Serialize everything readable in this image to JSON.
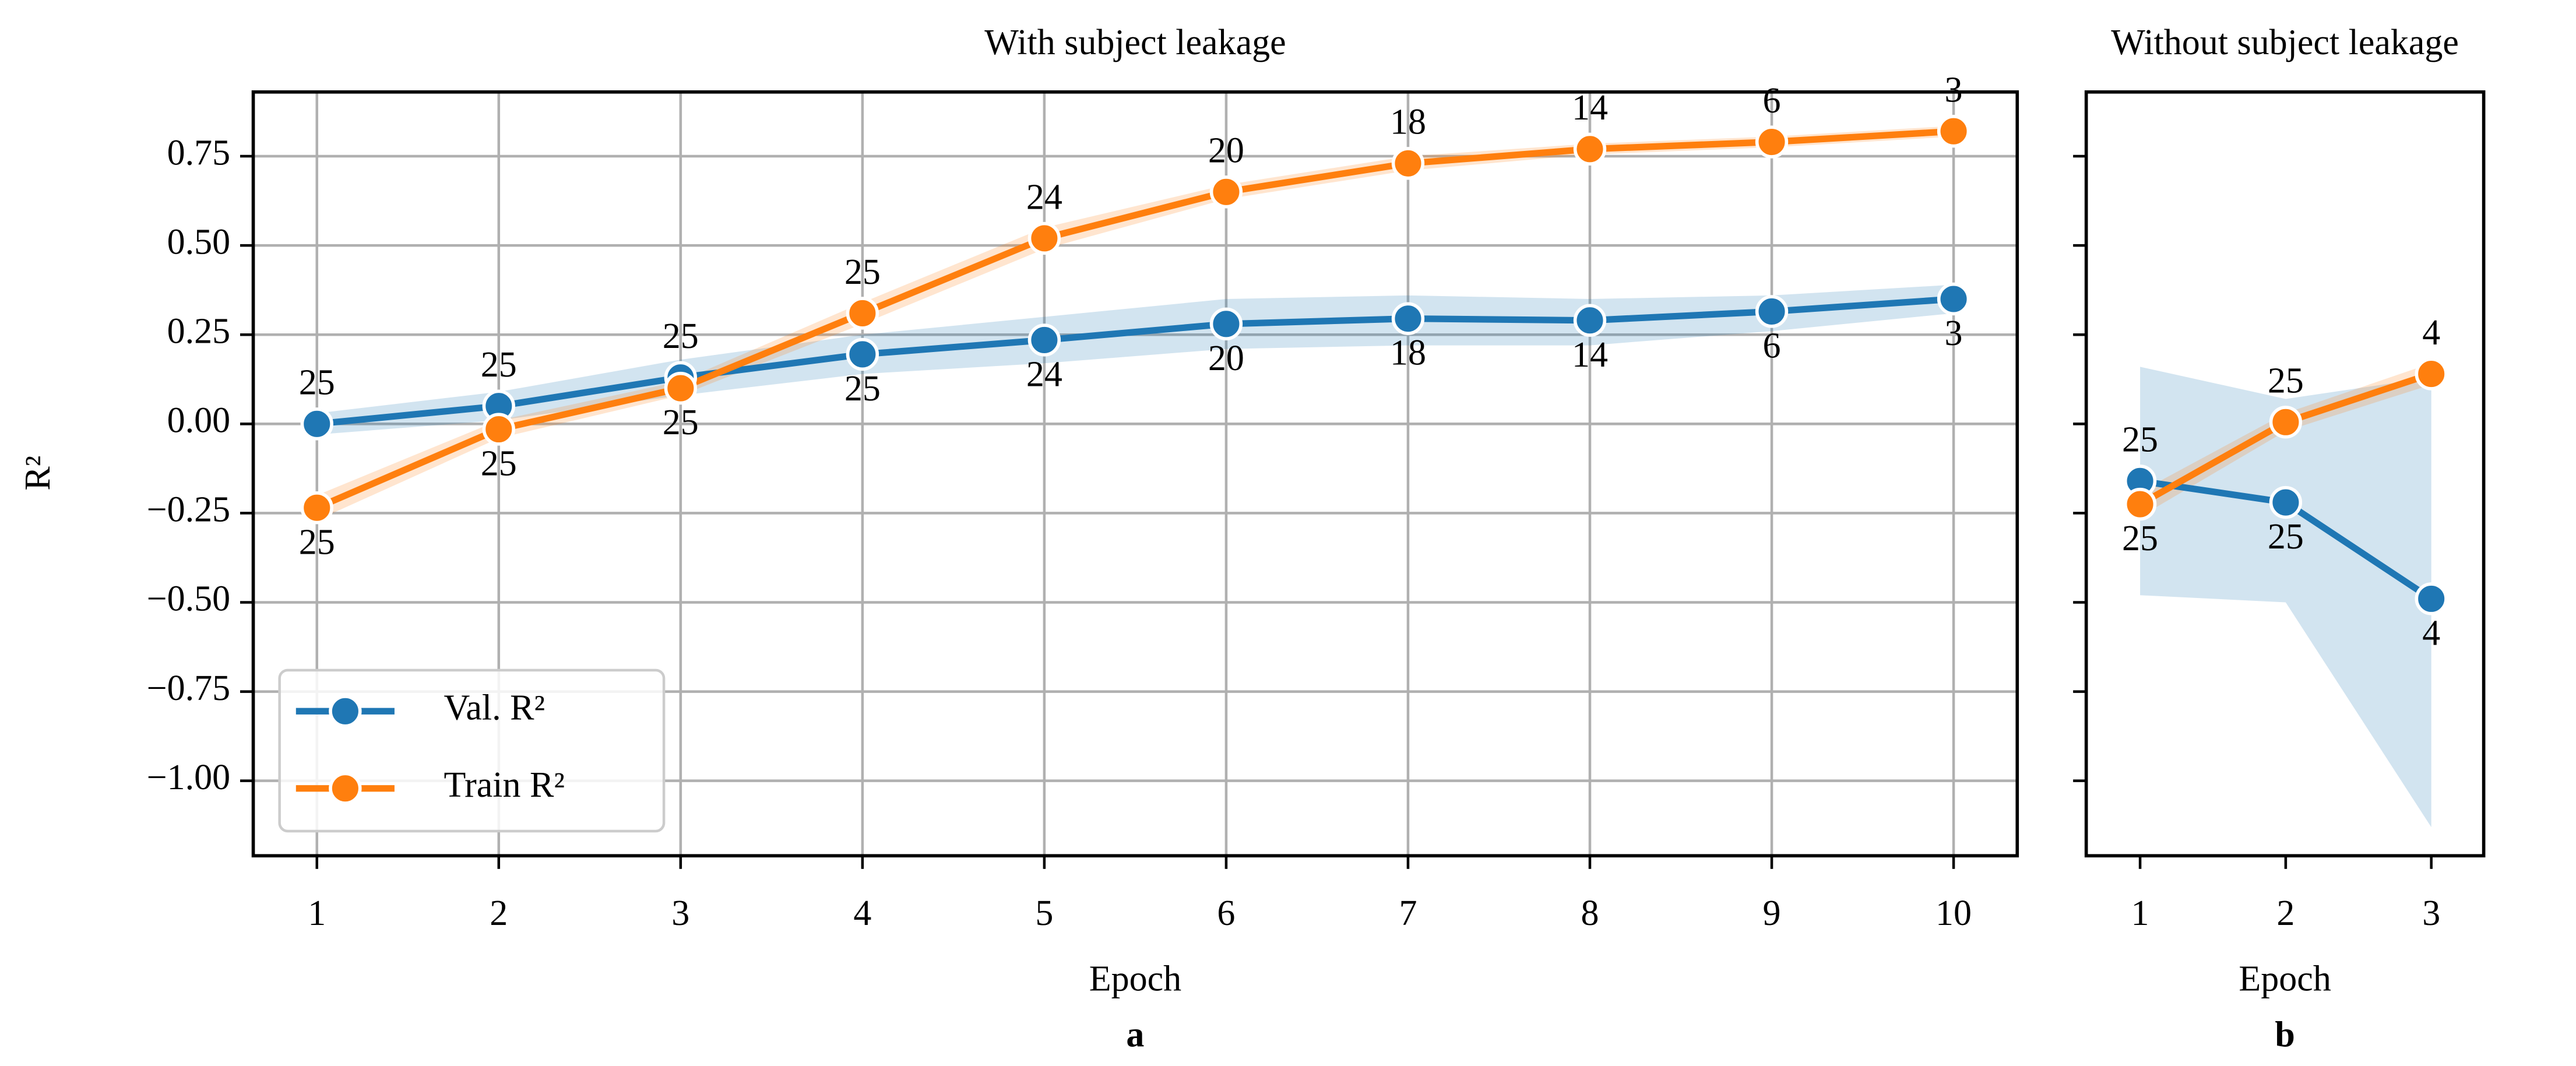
{
  "chart_data": [
    {
      "type": "line",
      "title": "With subject leakage",
      "xlabel": "Epoch",
      "panel_label": "a",
      "ylabel": "R²",
      "x": [
        1,
        2,
        3,
        4,
        5,
        6,
        7,
        8,
        9,
        10
      ],
      "xlim": [
        0.65,
        10.35
      ],
      "xticks": [
        1,
        2,
        3,
        4,
        5,
        6,
        7,
        8,
        9,
        10
      ],
      "ylim": [
        -1.21,
        0.93
      ],
      "yticks": [
        {
          "value": -1,
          "label": "−1.00"
        },
        {
          "value": -0.75,
          "label": "−0.75"
        },
        {
          "value": -0.5,
          "label": "−0.50"
        },
        {
          "value": -0.25,
          "label": "−0.25"
        },
        {
          "value": 0,
          "label": "0.00"
        },
        0.25,
        {
          "value": 0.5,
          "label": "0.50"
        },
        0.75
      ],
      "grid": true,
      "legend": "lower left",
      "show_ytick_labels": true,
      "series": [
        {
          "name": "Val. R²",
          "color": "#1f77b4",
          "values": [
            0.0,
            0.05,
            0.13,
            0.195,
            0.235,
            0.28,
            0.295,
            0.29,
            0.315,
            0.35
          ],
          "lower": [
            -0.03,
            0.01,
            0.08,
            0.14,
            0.17,
            0.21,
            0.22,
            0.22,
            0.26,
            0.31
          ],
          "upper": [
            0.03,
            0.09,
            0.18,
            0.25,
            0.3,
            0.35,
            0.36,
            0.35,
            0.36,
            0.39
          ],
          "counts": [
            25,
            25,
            25,
            25,
            24,
            20,
            18,
            14,
            6,
            3
          ]
        },
        {
          "name": "Train R²",
          "color": "#ff7f0e",
          "values": [
            -0.235,
            -0.015,
            0.1,
            0.31,
            0.52,
            0.65,
            0.73,
            0.77,
            0.79,
            0.82
          ],
          "lower": [
            -0.27,
            -0.04,
            0.08,
            0.28,
            0.49,
            0.63,
            0.71,
            0.755,
            0.775,
            0.805
          ],
          "upper": [
            -0.2,
            0.01,
            0.12,
            0.34,
            0.55,
            0.67,
            0.75,
            0.785,
            0.805,
            0.835
          ],
          "counts": [
            25,
            25,
            25,
            25,
            24,
            20,
            18,
            14,
            6,
            3
          ]
        }
      ]
    },
    {
      "type": "line",
      "title": "Without subject leakage",
      "xlabel": "Epoch",
      "panel_label": "b",
      "x": [
        1,
        2,
        3
      ],
      "xlim": [
        0.63,
        3.36
      ],
      "xticks": [
        1,
        2,
        3
      ],
      "ylim": [
        -1.21,
        0.93
      ],
      "yticks": [
        -1,
        -0.75,
        -0.5,
        -0.25,
        0,
        0.25,
        0.5,
        0.75
      ],
      "grid": false,
      "show_ytick_labels": false,
      "series": [
        {
          "color": "#1f77b4",
          "values": [
            -0.16,
            -0.22,
            -0.49
          ],
          "lower": [
            -0.48,
            -0.5,
            -1.13
          ],
          "upper": [
            0.16,
            0.07,
            0.13
          ],
          "counts": [
            25,
            25,
            4
          ]
        },
        {
          "color": "#ff7f0e",
          "values": [
            -0.225,
            0.005,
            0.14
          ],
          "lower": [
            -0.26,
            -0.02,
            0.11
          ],
          "upper": [
            -0.19,
            0.03,
            0.17
          ],
          "counts": [
            25,
            25,
            4
          ]
        }
      ]
    }
  ]
}
